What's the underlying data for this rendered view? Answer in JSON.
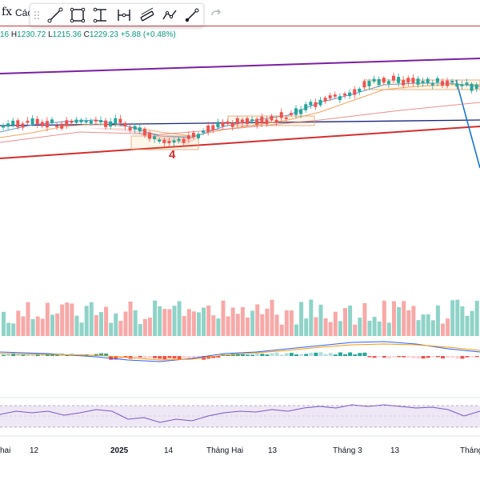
{
  "toolbar": {
    "fx_label": "fx",
    "indicators_label": "Các",
    "tools": [
      {
        "name": "trend-line-tool-icon"
      },
      {
        "name": "rectangle-tool-icon"
      },
      {
        "name": "text-anchor-tool-icon"
      },
      {
        "name": "hline-tool-icon"
      },
      {
        "name": "channel-tool-icon"
      },
      {
        "name": "path-tool-icon"
      },
      {
        "name": "brush-tool-icon"
      }
    ]
  },
  "ohlc": {
    "open_tail": "16",
    "h_key": "H",
    "h_val": "1230.72",
    "l_key": "L",
    "l_val": "1215.36",
    "c_key": "C",
    "c_val": "1229.23",
    "change": "+5.88 (+0.48%)"
  },
  "annotation_label": "4",
  "x_axis": [
    {
      "label": "hai",
      "bold": false
    },
    {
      "label": "12",
      "bold": false
    },
    {
      "label": "2025",
      "bold": true
    },
    {
      "label": "14",
      "bold": false
    },
    {
      "label": "Tháng Hai",
      "bold": false
    },
    {
      "label": "13",
      "bold": false
    },
    {
      "label": "Tháng 3",
      "bold": false
    },
    {
      "label": "13",
      "bold": false
    },
    {
      "label": "Tháng",
      "bold": false
    }
  ],
  "colors": {
    "up": "#26a69a",
    "down": "#ef5350",
    "vol_up": "#8fd3c8",
    "vol_down": "#f7a9a7",
    "purple_line": "#7b1fa2",
    "red_line": "#d32f2f",
    "navy_line": "#1a237e",
    "blue_line": "#1976d2",
    "ma_orange": "#f5a25d",
    "ma_blue": "#5b9bd5",
    "ma_pink": "#e57373"
  }
}
